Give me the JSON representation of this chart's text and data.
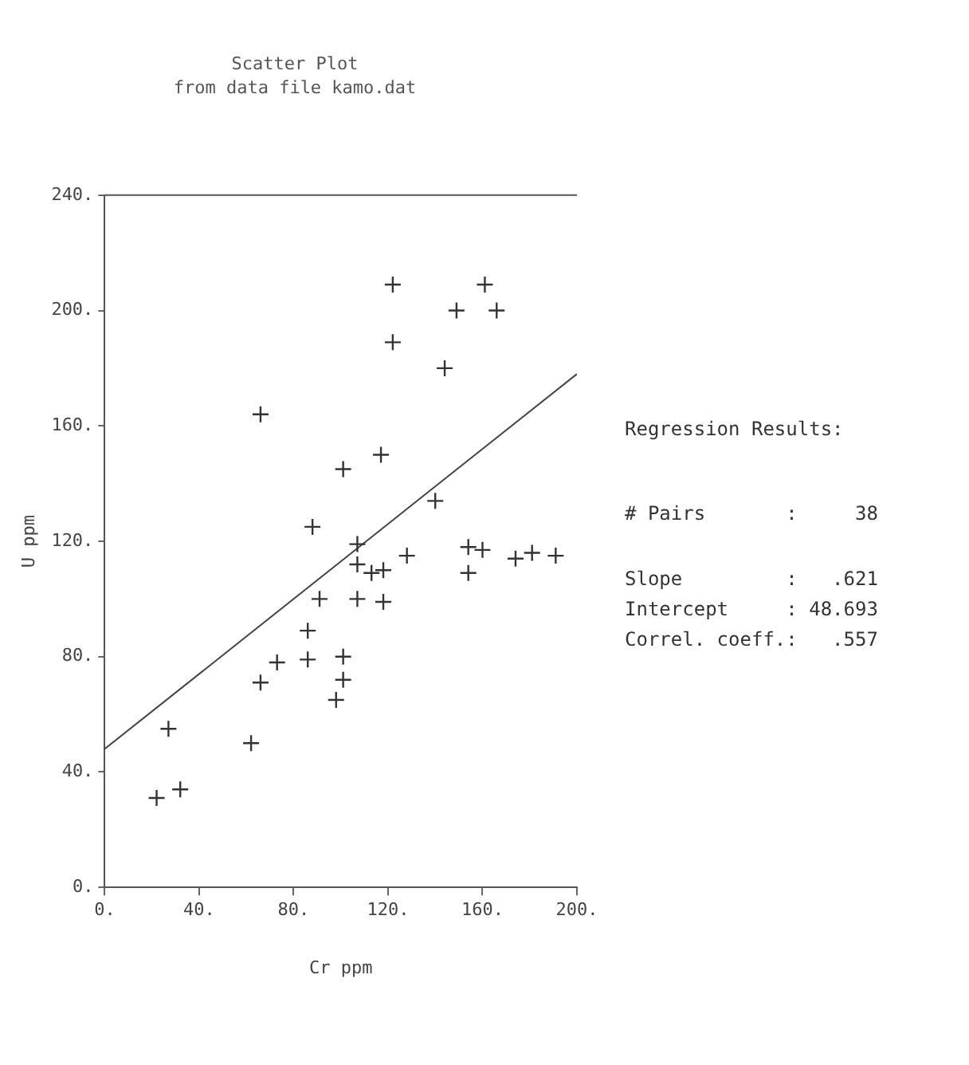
{
  "chart_data": {
    "type": "scatter",
    "title": "Scatter Plot",
    "subtitle": "from data file kamo.dat",
    "xlabel": "Cr ppm",
    "ylabel": "U ppm",
    "xlim": [
      0,
      200
    ],
    "xticks": [
      {
        "value": 0,
        "label": "0."
      },
      {
        "value": 40,
        "label": "40."
      },
      {
        "value": 80,
        "label": "80."
      },
      {
        "value": 120,
        "label": "120."
      },
      {
        "value": 160,
        "label": "160."
      },
      {
        "value": 200,
        "label": "200."
      }
    ],
    "ylim": [
      0,
      240
    ],
    "yticks": [
      {
        "value": 0,
        "label": "0."
      },
      {
        "value": 40,
        "label": "40."
      },
      {
        "value": 80,
        "label": "80."
      },
      {
        "value": 120,
        "label": "120."
      },
      {
        "value": 160,
        "label": "160."
      },
      {
        "value": 200,
        "label": "200."
      },
      {
        "value": 240,
        "label": "240."
      }
    ],
    "grid": false,
    "legend": false,
    "marker": "cross",
    "series": [
      {
        "color": "#333333",
        "x": [
          22,
          27,
          32,
          62,
          66,
          73,
          86,
          86,
          91,
          88,
          98,
          101,
          101,
          107,
          107,
          107,
          113,
          118,
          118,
          128,
          154,
          154,
          160,
          174,
          181,
          191,
          140,
          122,
          122,
          161,
          149,
          166,
          144,
          66,
          117,
          101
        ],
        "values": [
          31,
          55,
          34,
          50,
          71,
          78,
          89,
          79,
          100,
          125,
          65,
          80,
          72,
          100,
          112,
          119,
          109,
          110,
          99,
          115,
          109,
          118,
          117,
          114,
          116,
          115,
          134,
          209,
          189,
          209,
          200,
          200,
          180,
          164,
          150,
          145
        ]
      },
      {
        "type": "line",
        "marker": "none",
        "color": "#444444",
        "x": [
          0,
          200
        ],
        "values": [
          48,
          178
        ]
      }
    ],
    "annotations": [
      "Regression Results:",
      "# Pairs       :     38",
      "Slope         :   .621",
      "Intercept     : 48.693",
      "Correl. coeff.:   .557"
    ]
  }
}
